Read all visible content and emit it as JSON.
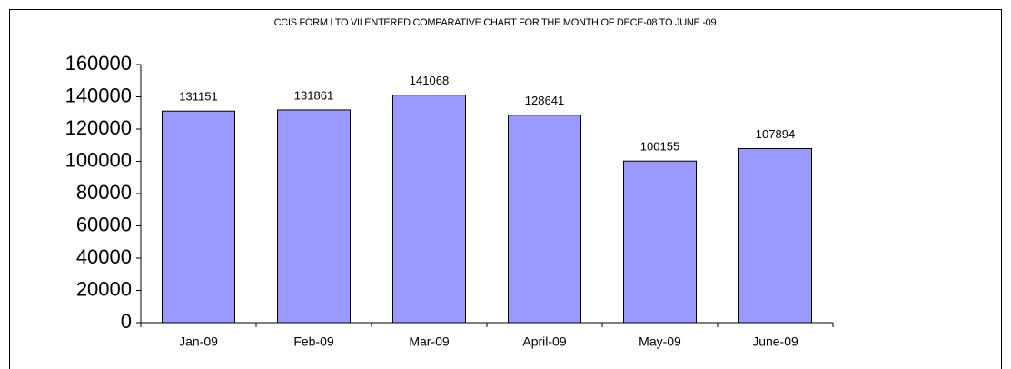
{
  "chart_data": {
    "type": "bar",
    "title": "CCIS FORM I TO VII ENTERED COMPARATIVE CHART FOR THE MONTH OF DECE-08 TO JUNE -09",
    "categories": [
      "Jan-09",
      "Feb-09",
      "Mar-09",
      "April-09",
      "May-09",
      "June-09"
    ],
    "values": [
      131151,
      131861,
      141068,
      128641,
      100155,
      107894
    ],
    "color": "#9999ff",
    "ylim": [
      0,
      160000
    ],
    "yticks": [
      0,
      20000,
      40000,
      60000,
      80000,
      100000,
      120000,
      140000,
      160000
    ],
    "grid": false
  }
}
